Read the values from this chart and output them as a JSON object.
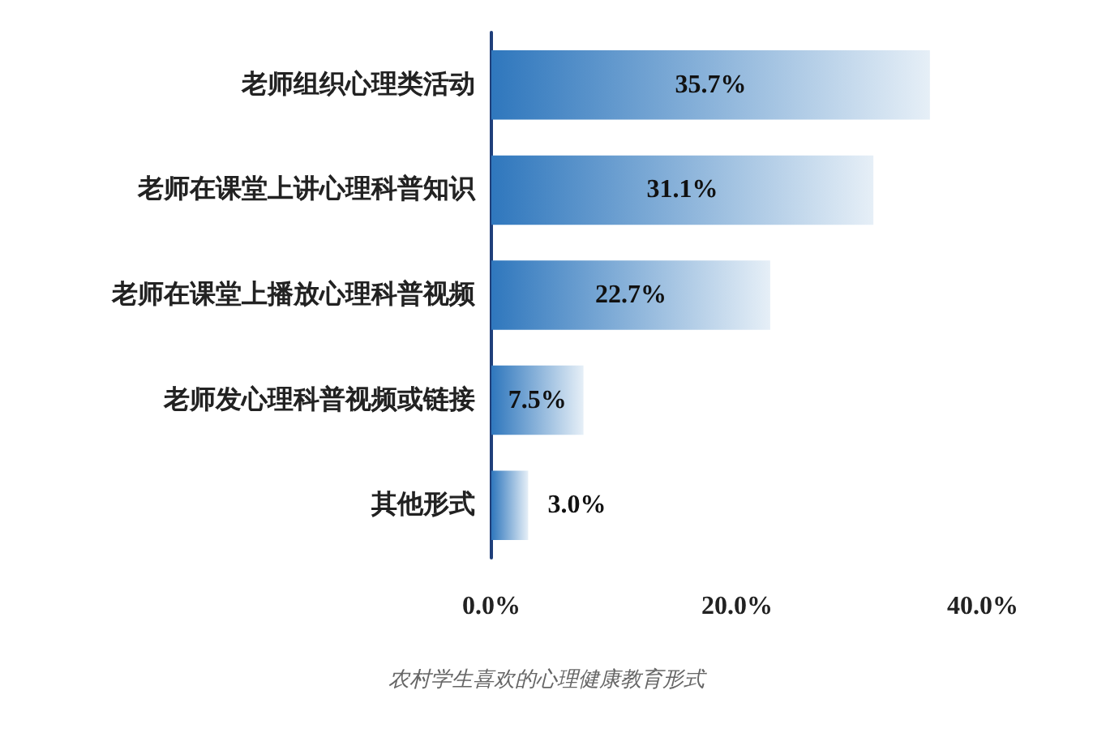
{
  "chart_data": {
    "type": "bar",
    "orientation": "horizontal",
    "categories": [
      "老师组织心理类活动",
      "老师在课堂上讲心理科普知识",
      "老师在课堂上播放心理科普视频",
      "老师发心理科普视频或链接",
      "其他形式"
    ],
    "values": [
      35.7,
      31.1,
      22.7,
      7.5,
      3.0
    ],
    "value_labels": [
      "35.7%",
      "31.1%",
      "22.7%",
      "7.5%",
      "3.0%"
    ],
    "color": "#2f77bd",
    "xlim": [
      0,
      40
    ],
    "xticks": [
      {
        "value": 0,
        "label": "0.0%"
      },
      {
        "value": 20,
        "label": "20.0%"
      },
      {
        "value": 40,
        "label": "40.0%"
      }
    ],
    "grid": false,
    "annotations": [
      "农村学生喜欢的心理健康教育形式"
    ]
  }
}
